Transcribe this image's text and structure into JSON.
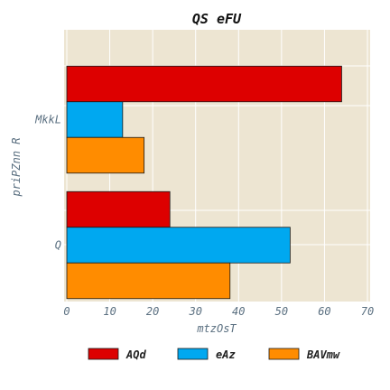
{
  "chart_data": {
    "type": "bar",
    "orientation": "horizontal",
    "title": "QS eFU",
    "xlabel": "mtzOsT",
    "ylabel": "priPZnn R",
    "categories": [
      "MkkL",
      "Q"
    ],
    "xlim": [
      0,
      70
    ],
    "xticks": [
      "0",
      "10",
      "20",
      "30",
      "40",
      "50",
      "60",
      "70"
    ],
    "grid": true,
    "legend_position": "bottom",
    "series": [
      {
        "name": "AQd",
        "color": "#dd0000",
        "values": [
          64,
          24
        ]
      },
      {
        "name": "eAz",
        "color": "#00a8f0",
        "values": [
          13,
          52
        ]
      },
      {
        "name": "BAVmw",
        "color": "#ff8c00",
        "values": [
          18,
          38
        ]
      }
    ],
    "plot_background": "#ede5d2"
  }
}
